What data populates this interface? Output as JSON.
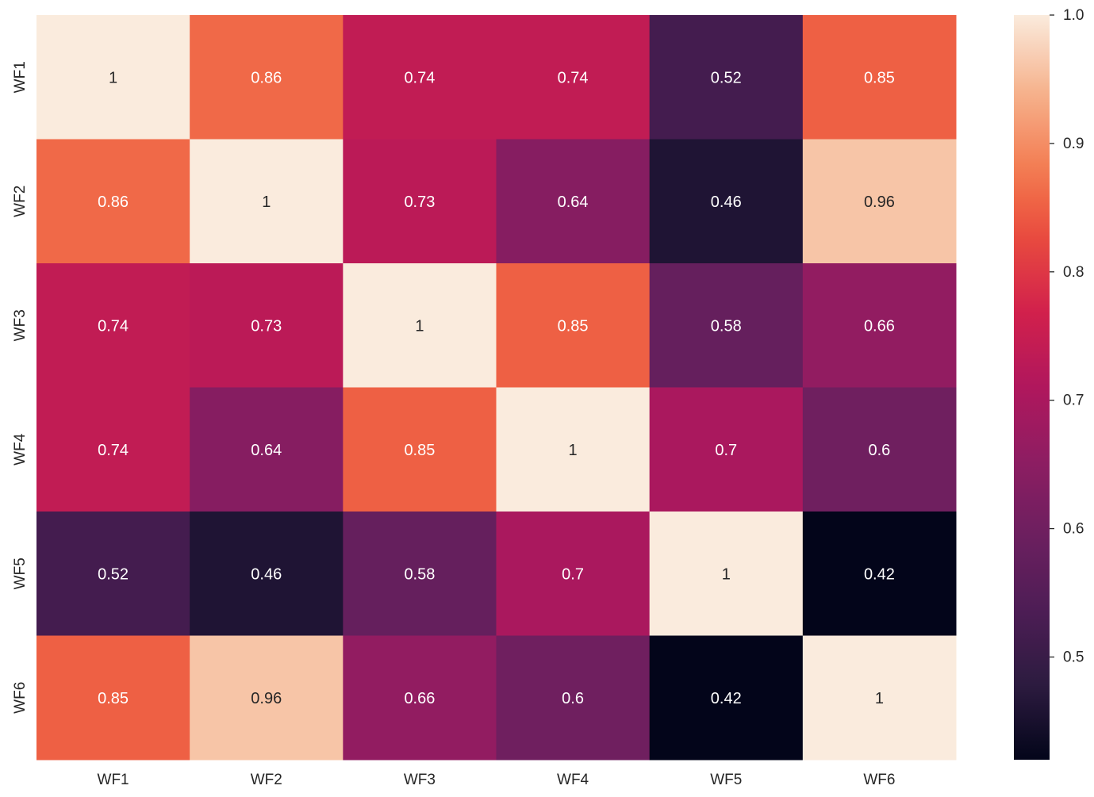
{
  "chart_data": {
    "type": "heatmap",
    "x_labels": [
      "WF1",
      "WF2",
      "WF3",
      "WF4",
      "WF5",
      "WF6"
    ],
    "y_labels": [
      "WF1",
      "WF2",
      "WF3",
      "WF4",
      "WF5",
      "WF6"
    ],
    "values": [
      [
        1,
        0.86,
        0.74,
        0.74,
        0.52,
        0.85
      ],
      [
        0.86,
        1,
        0.73,
        0.64,
        0.46,
        0.96
      ],
      [
        0.74,
        0.73,
        1,
        0.85,
        0.58,
        0.66
      ],
      [
        0.74,
        0.64,
        0.85,
        1,
        0.7,
        0.6
      ],
      [
        0.52,
        0.46,
        0.58,
        0.7,
        1,
        0.42
      ],
      [
        0.85,
        0.96,
        0.66,
        0.6,
        0.42,
        1
      ]
    ],
    "annotations": [
      [
        "1",
        "0.86",
        "0.74",
        "0.74",
        "0.52",
        "0.85"
      ],
      [
        "0.86",
        "1",
        "0.73",
        "0.64",
        "0.46",
        "0.96"
      ],
      [
        "0.74",
        "0.73",
        "1",
        "0.85",
        "0.58",
        "0.66"
      ],
      [
        "0.74",
        "0.64",
        "0.85",
        "1",
        "0.7",
        "0.6"
      ],
      [
        "0.52",
        "0.46",
        "0.58",
        "0.7",
        "1",
        "0.42"
      ],
      [
        "0.85",
        "0.96",
        "0.66",
        "0.6",
        "0.42",
        "1"
      ]
    ],
    "vmin": 0.42,
    "vmax": 1.0,
    "colormap": "rocket",
    "colormap_stops": [
      [
        0.0,
        "#03051a"
      ],
      [
        0.1,
        "#2c1b3f"
      ],
      [
        0.2,
        "#4d1d55"
      ],
      [
        0.3,
        "#6c1f5f"
      ],
      [
        0.4,
        "#8d1d62"
      ],
      [
        0.5,
        "#b0175d"
      ],
      [
        0.6,
        "#d1204c"
      ],
      [
        0.7,
        "#e84a3f"
      ],
      [
        0.75,
        "#ef6445"
      ],
      [
        0.8,
        "#f37f55"
      ],
      [
        0.9,
        "#f6b48f"
      ],
      [
        1.0,
        "#faebdd"
      ]
    ],
    "colorbar_ticks": [
      "1.0",
      "0.9",
      "0.8",
      "0.7",
      "0.6",
      "0.5"
    ],
    "colorbar_tick_values": [
      1.0,
      0.9,
      0.8,
      0.7,
      0.6,
      0.5
    ],
    "text_dark": "#262626",
    "text_light": "#ffffff",
    "tick_color": "#262626",
    "title": "",
    "xlabel": "",
    "ylabel": ""
  }
}
